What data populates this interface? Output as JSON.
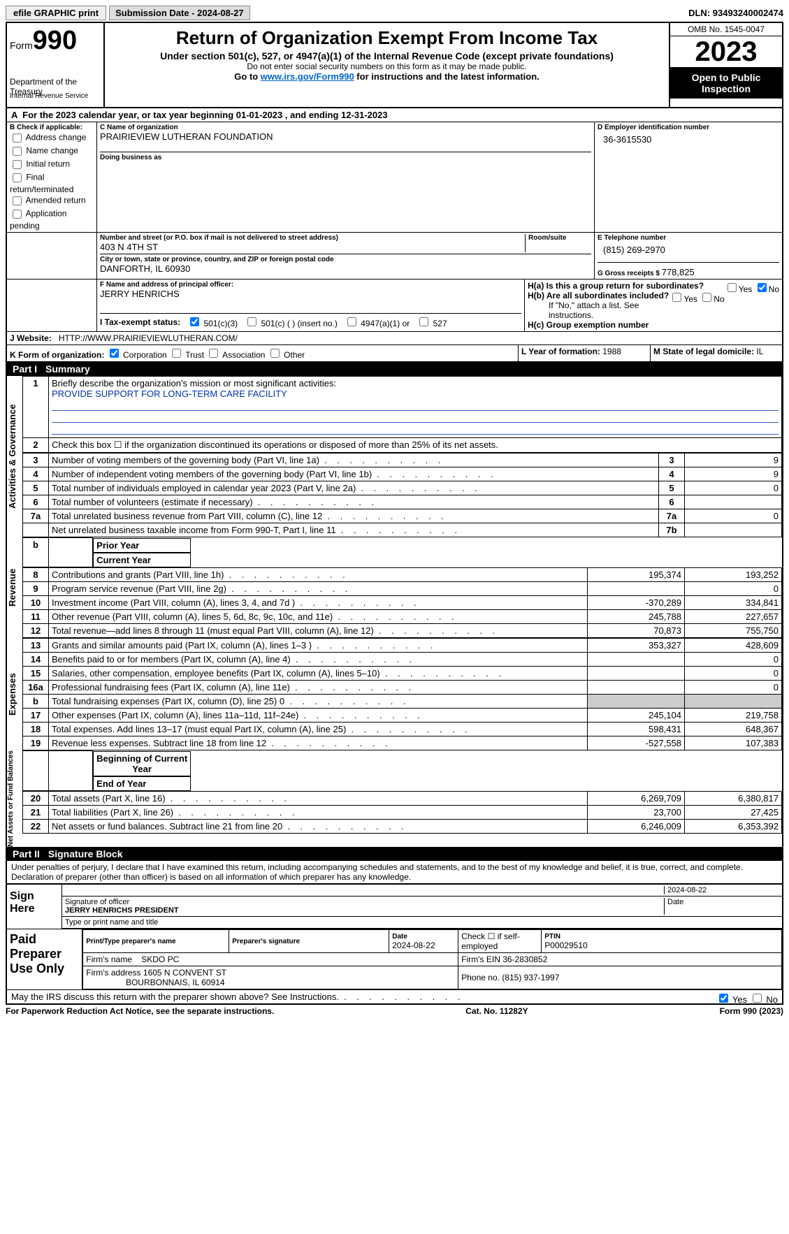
{
  "topbar": {
    "efile": "efile GRAPHIC print",
    "submission_label": "Submission Date - ",
    "submission_date": "2024-08-27",
    "dln_label": "DLN: ",
    "dln": "93493240002474"
  },
  "header": {
    "form_word": "Form",
    "form_num": "990",
    "dept": "Department of the Treasury",
    "irs": "Internal Revenue Service",
    "title": "Return of Organization Exempt From Income Tax",
    "sub1": "Under section 501(c), 527, or 4947(a)(1) of the Internal Revenue Code (except private foundations)",
    "sub2": "Do not enter social security numbers on this form as it may be made public.",
    "sub3_pre": "Go to ",
    "sub3_link": "www.irs.gov/Form990",
    "sub3_post": " for instructions and the latest information.",
    "omb": "OMB No. 1545-0047",
    "year": "2023",
    "open": "Open to Public Inspection"
  },
  "period": {
    "text_a": "For the 2023 calendar year, or tax year beginning ",
    "begin": "01-01-2023",
    "text_b": " , and ending ",
    "end": "12-31-2023"
  },
  "boxB": {
    "title": "B Check if applicable:",
    "opts": [
      "Address change",
      "Name change",
      "Initial return",
      "Final return/terminated",
      "Amended return",
      "Application pending"
    ]
  },
  "boxC": {
    "name_label": "C Name of organization",
    "name": "PRAIRIEVIEW LUTHERAN FOUNDATION",
    "dba_label": "Doing business as",
    "dba": "",
    "street_label": "Number and street (or P.O. box if mail is not delivered to street address)",
    "street": "403 N 4TH ST",
    "room_label": "Room/suite",
    "city_label": "City or town, state or province, country, and ZIP or foreign postal code",
    "city": "DANFORTH, IL  60930"
  },
  "boxD": {
    "label": "D Employer identification number",
    "val": "36-3615530"
  },
  "boxE": {
    "label": "E Telephone number",
    "val": "(815) 269-2970"
  },
  "boxF": {
    "label": "F  Name and address of principal officer:",
    "val": "JERRY HENRICHS"
  },
  "boxG": {
    "label": "G Gross receipts $ ",
    "val": "778,825"
  },
  "boxH": {
    "a": "H(a)  Is this a group return for subordinates?",
    "b": "H(b)  Are all subordinates included?",
    "note": "If \"No,\" attach a list. See instructions.",
    "c": "H(c)  Group exemption number ",
    "yes": "Yes",
    "no": "No"
  },
  "boxI": {
    "label": "I   Tax-exempt status:",
    "c3": "501(c)(3)",
    "cins": "501(c) (  ) (insert no.)",
    "a1": "4947(a)(1) or",
    "s527": "527"
  },
  "boxJ": {
    "label": "J   Website:",
    "val": "HTTP://WWW.PRAIRIEVIEWLUTHERAN.COM/"
  },
  "boxK": {
    "label": "K Form of organization:",
    "corp": "Corporation",
    "trust": "Trust",
    "assoc": "Association",
    "other": "Other"
  },
  "boxL": {
    "label": "L Year of formation: ",
    "val": "1988"
  },
  "boxM": {
    "label": "M State of legal domicile: ",
    "val": "IL"
  },
  "part1": {
    "label": "Part I",
    "title": "Summary"
  },
  "summary": {
    "q1": "Briefly describe the organization's mission or most significant activities:",
    "mission": "PROVIDE SUPPORT FOR LONG-TERM CARE FACILITY",
    "q2": "Check this box ☐ if the organization discontinued its operations or disposed of more than 25% of its net assets.",
    "rows_gov": [
      {
        "n": "3",
        "t": "Number of voting members of the governing body (Part VI, line 1a)",
        "b": "3",
        "v": "9"
      },
      {
        "n": "4",
        "t": "Number of independent voting members of the governing body (Part VI, line 1b)",
        "b": "4",
        "v": "9"
      },
      {
        "n": "5",
        "t": "Total number of individuals employed in calendar year 2023 (Part V, line 2a)",
        "b": "5",
        "v": "0"
      },
      {
        "n": "6",
        "t": "Total number of volunteers (estimate if necessary)",
        "b": "6",
        "v": ""
      },
      {
        "n": "7a",
        "t": "Total unrelated business revenue from Part VIII, column (C), line 12",
        "b": "7a",
        "v": "0"
      },
      {
        "n": "",
        "t": "Net unrelated business taxable income from Form 990-T, Part I, line 11",
        "b": "7b",
        "v": ""
      }
    ],
    "col_prior": "Prior Year",
    "col_curr": "Current Year",
    "rows_rev": [
      {
        "n": "8",
        "t": "Contributions and grants (Part VIII, line 1h)",
        "p": "195,374",
        "c": "193,252"
      },
      {
        "n": "9",
        "t": "Program service revenue (Part VIII, line 2g)",
        "p": "",
        "c": "0"
      },
      {
        "n": "10",
        "t": "Investment income (Part VIII, column (A), lines 3, 4, and 7d )",
        "p": "-370,289",
        "c": "334,841"
      },
      {
        "n": "11",
        "t": "Other revenue (Part VIII, column (A), lines 5, 6d, 8c, 9c, 10c, and 11e)",
        "p": "245,788",
        "c": "227,657"
      },
      {
        "n": "12",
        "t": "Total revenue—add lines 8 through 11 (must equal Part VIII, column (A), line 12)",
        "p": "70,873",
        "c": "755,750"
      }
    ],
    "rows_exp": [
      {
        "n": "13",
        "t": "Grants and similar amounts paid (Part IX, column (A), lines 1–3 )",
        "p": "353,327",
        "c": "428,609"
      },
      {
        "n": "14",
        "t": "Benefits paid to or for members (Part IX, column (A), line 4)",
        "p": "",
        "c": "0"
      },
      {
        "n": "15",
        "t": "Salaries, other compensation, employee benefits (Part IX, column (A), lines 5–10)",
        "p": "",
        "c": "0"
      },
      {
        "n": "16a",
        "t": "Professional fundraising fees (Part IX, column (A), line 11e)",
        "p": "",
        "c": "0"
      },
      {
        "n": "b",
        "t": "Total fundraising expenses (Part IX, column (D), line 25) 0",
        "p": "GRAY",
        "c": "GRAY"
      },
      {
        "n": "17",
        "t": "Other expenses (Part IX, column (A), lines 11a–11d, 11f–24e)",
        "p": "245,104",
        "c": "219,758"
      },
      {
        "n": "18",
        "t": "Total expenses. Add lines 13–17 (must equal Part IX, column (A), line 25)",
        "p": "598,431",
        "c": "648,367"
      },
      {
        "n": "19",
        "t": "Revenue less expenses. Subtract line 18 from line 12",
        "p": "-527,558",
        "c": "107,383"
      }
    ],
    "col_beg": "Beginning of Current Year",
    "col_end": "End of Year",
    "rows_net": [
      {
        "n": "20",
        "t": "Total assets (Part X, line 16)",
        "p": "6,269,709",
        "c": "6,380,817"
      },
      {
        "n": "21",
        "t": "Total liabilities (Part X, line 26)",
        "p": "23,700",
        "c": "27,425"
      },
      {
        "n": "22",
        "t": "Net assets or fund balances. Subtract line 21 from line 20",
        "p": "6,246,009",
        "c": "6,353,392"
      }
    ],
    "vlab_gov": "Activities & Governance",
    "vlab_rev": "Revenue",
    "vlab_exp": "Expenses",
    "vlab_net": "Net Assets or Fund Balances"
  },
  "part2": {
    "label": "Part II",
    "title": "Signature Block",
    "jurat": "Under penalties of perjury, I declare that I have examined this return, including accompanying schedules and statements, and to the best of my knowledge and belief, it is true, correct, and complete. Declaration of preparer (other than officer) is based on all information of which preparer has any knowledge."
  },
  "sign": {
    "here": "Sign Here",
    "sig_label": "Signature of officer",
    "date_label": "Date",
    "date": "2024-08-22",
    "officer": "JERRY HENRICHS  PRESIDENT",
    "name_label": "Type or print name and title"
  },
  "paid": {
    "title": "Paid Preparer Use Only",
    "prep_name_l": "Print/Type preparer's name",
    "prep_name": "",
    "prep_sig_l": "Preparer's signature",
    "prep_date_l": "Date",
    "prep_date": "2024-08-22",
    "self_l": "Check ☐ if self-employed",
    "ptin_l": "PTIN",
    "ptin": "P00029510",
    "firm_name_l": "Firm's name    ",
    "firm_name": "SKDO PC",
    "firm_ein_l": "Firm's EIN ",
    "firm_ein": "36-2830852",
    "firm_addr_l": "Firm's address ",
    "firm_addr1": "1605 N CONVENT ST",
    "firm_addr2": "BOURBONNAIS, IL  60914",
    "phone_l": "Phone no. ",
    "phone": "(815) 937-1997",
    "discuss": "May the IRS discuss this return with the preparer shown above? See Instructions.",
    "yes": "Yes",
    "no": "No"
  },
  "footer": {
    "pra": "For Paperwork Reduction Act Notice, see the separate instructions.",
    "cat": "Cat. No. 11282Y",
    "form": "Form 990 (2023)"
  }
}
